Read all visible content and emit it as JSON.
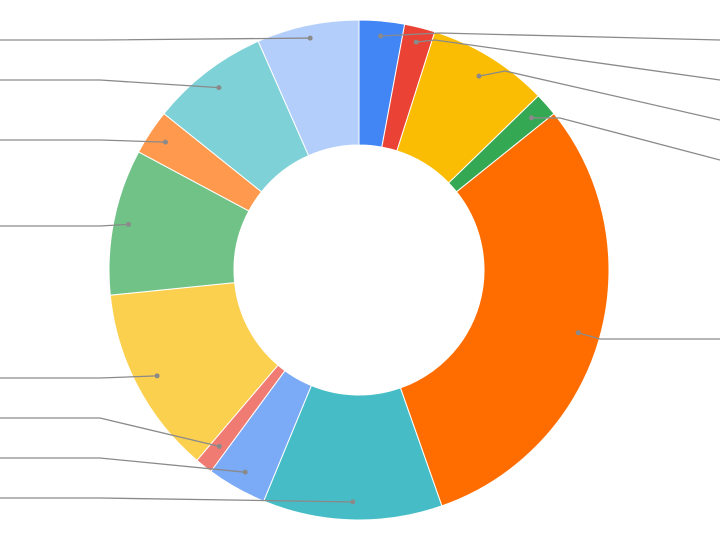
{
  "chart_data": {
    "type": "pie",
    "variant": "donut",
    "start_angle_deg": 0,
    "direction": "clockwise",
    "legend": "none",
    "leader_line_color": "#8a8a8a",
    "slices": [
      {
        "value": 3.1,
        "color": "#4285f4"
      },
      {
        "value": 2.1,
        "color": "#ea4335"
      },
      {
        "value": 8.3,
        "color": "#fbbc04"
      },
      {
        "value": 1.6,
        "color": "#34a853"
      },
      {
        "value": 32.2,
        "color": "#ff6d01"
      },
      {
        "value": 12.3,
        "color": "#46bdc6"
      },
      {
        "value": 4.1,
        "color": "#7baaf7"
      },
      {
        "value": 1.2,
        "color": "#f07b72"
      },
      {
        "value": 12.9,
        "color": "#fcd04f"
      },
      {
        "value": 10.0,
        "color": "#71c287"
      },
      {
        "value": 3.1,
        "color": "#ff994d"
      },
      {
        "value": 8.1,
        "color": "#7ed1d7"
      },
      {
        "value": 7.0,
        "color": "#b3cefb"
      }
    ]
  }
}
